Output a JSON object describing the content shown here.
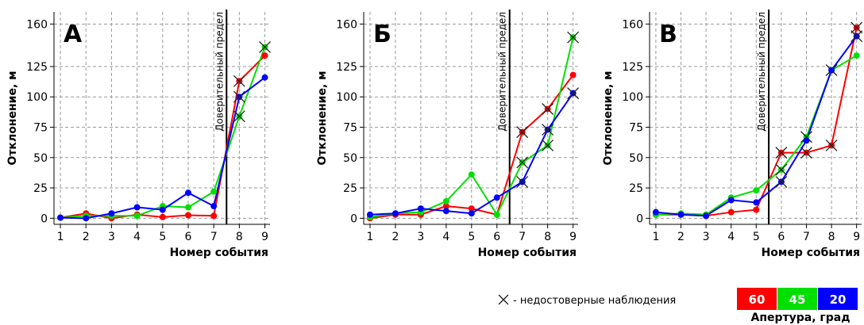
{
  "legend": {
    "title": "Апертура, град",
    "note": "- недостоверные наблюдения"
  },
  "chart_data": [
    {
      "type": "line",
      "title": "А",
      "xlabel": "Номер события",
      "ylabel": "Отклонение, м",
      "x": [
        1,
        2,
        3,
        4,
        5,
        6,
        7,
        8,
        9
      ],
      "xlim": [
        0.75,
        9.2
      ],
      "xticks": [
        1,
        2,
        3,
        4,
        5,
        6,
        7,
        8,
        9
      ],
      "ylim": [
        -5,
        170
      ],
      "yticks": [
        0,
        25,
        50,
        75,
        100,
        125,
        160
      ],
      "grid": true,
      "limit": {
        "x": 7.5,
        "label": "Доверительный предел"
      },
      "series": [
        {
          "name": "60",
          "color": "#ff0000",
          "values": [
            0.5,
            4,
            0,
            3,
            1,
            2.5,
            2,
            113,
            134
          ],
          "unreliable": [
            false,
            false,
            false,
            false,
            false,
            false,
            false,
            true,
            false
          ]
        },
        {
          "name": "45",
          "color": "#00e000",
          "values": [
            0.5,
            2,
            2,
            2,
            10,
            9,
            22,
            84,
            141
          ],
          "unreliable": [
            false,
            false,
            false,
            false,
            false,
            false,
            false,
            true,
            true
          ]
        },
        {
          "name": "20",
          "color": "#0000ff",
          "values": [
            0.5,
            0,
            4,
            9,
            7,
            21,
            10,
            100,
            116
          ],
          "unreliable": [
            false,
            false,
            false,
            false,
            false,
            false,
            false,
            true,
            false
          ]
        }
      ]
    },
    {
      "type": "line",
      "title": "Б",
      "xlabel": "Номер события",
      "ylabel": "Отклонение, м",
      "x": [
        1,
        2,
        3,
        4,
        5,
        6,
        7,
        8,
        9
      ],
      "xlim": [
        0.75,
        9.2
      ],
      "xticks": [
        1,
        2,
        3,
        4,
        5,
        6,
        7,
        8,
        9
      ],
      "ylim": [
        -5,
        170
      ],
      "yticks": [
        0,
        25,
        50,
        75,
        100,
        125,
        160
      ],
      "grid": true,
      "limit": {
        "x": 6.5,
        "label": "Доверительный предел"
      },
      "series": [
        {
          "name": "60",
          "color": "#ff0000",
          "values": [
            0,
            3,
            3,
            10,
            8,
            3,
            71,
            90,
            118
          ],
          "unreliable": [
            false,
            false,
            false,
            false,
            false,
            false,
            true,
            true,
            false
          ]
        },
        {
          "name": "45",
          "color": "#00e000",
          "values": [
            1,
            4,
            5,
            14,
            36,
            3,
            46,
            60,
            149
          ],
          "unreliable": [
            false,
            false,
            false,
            false,
            false,
            false,
            true,
            true,
            true
          ]
        },
        {
          "name": "20",
          "color": "#0000ff",
          "values": [
            3,
            4,
            8,
            6,
            4,
            17,
            30,
            73,
            103
          ],
          "unreliable": [
            false,
            false,
            false,
            false,
            false,
            false,
            true,
            true,
            true
          ]
        }
      ]
    },
    {
      "type": "line",
      "title": "В",
      "xlabel": "Номер события",
      "ylabel": "Отклонение, м",
      "x": [
        1,
        2,
        3,
        4,
        5,
        6,
        7,
        8,
        9
      ],
      "xlim": [
        0.75,
        9.2
      ],
      "xticks": [
        1,
        2,
        3,
        4,
        5,
        6,
        7,
        8,
        9
      ],
      "ylim": [
        -5,
        170
      ],
      "yticks": [
        0,
        25,
        50,
        75,
        100,
        125,
        160
      ],
      "grid": true,
      "limit": {
        "x": 5.5,
        "label": "Доверительный предел"
      },
      "series": [
        {
          "name": "60",
          "color": "#ff0000",
          "values": [
            3,
            3,
            2,
            5,
            7,
            54,
            54,
            60,
            157
          ],
          "unreliable": [
            false,
            false,
            false,
            false,
            false,
            true,
            true,
            true,
            true
          ]
        },
        {
          "name": "45",
          "color": "#00e000",
          "values": [
            3,
            4,
            3,
            17,
            23,
            40,
            67,
            122,
            134
          ],
          "unreliable": [
            false,
            false,
            false,
            false,
            false,
            true,
            true,
            true,
            false
          ]
        },
        {
          "name": "20",
          "color": "#0000ff",
          "values": [
            5,
            3,
            2,
            15,
            13,
            30,
            64,
            122,
            150
          ],
          "unreliable": [
            false,
            false,
            false,
            false,
            false,
            true,
            false,
            false,
            true
          ]
        }
      ]
    }
  ]
}
